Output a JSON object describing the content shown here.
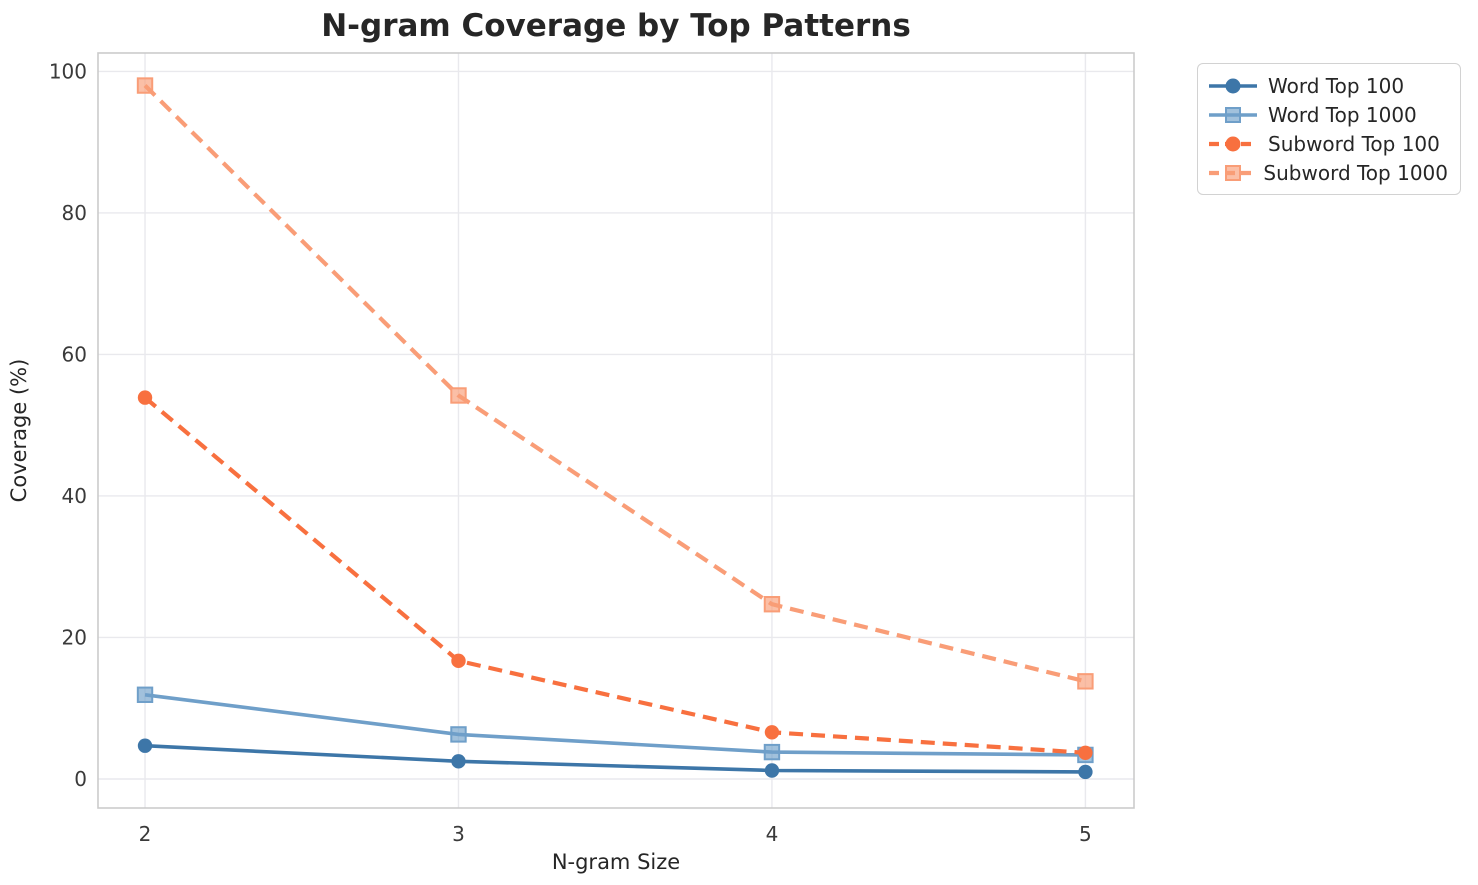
{
  "chart_data": {
    "type": "line",
    "title": "N-gram Coverage by Top Patterns",
    "xlabel": "N-gram Size",
    "ylabel": "Coverage (%)",
    "x": [
      2,
      3,
      4,
      5
    ],
    "xtick_labels": [
      "2",
      "3",
      "4",
      "5"
    ],
    "ytick_values": [
      0,
      20,
      40,
      60,
      80,
      100
    ],
    "xlim": [
      1.85,
      5.155
    ],
    "ylim": [
      -4.1,
      102.6
    ],
    "grid": true,
    "legend_position": "outside-top-right",
    "series": [
      {
        "name": "Word Top 100",
        "color": "#3d76a8",
        "marker": "circle",
        "line_style": "solid",
        "values": [
          4.7,
          2.5,
          1.2,
          1.0
        ]
      },
      {
        "name": "Word Top 1000",
        "color": "#6f9fc9",
        "marker": "square",
        "line_style": "solid",
        "values": [
          11.9,
          6.3,
          3.8,
          3.4
        ]
      },
      {
        "name": "Subword Top 100",
        "color": "#f8703f",
        "marker": "circle",
        "line_style": "dashed",
        "values": [
          53.9,
          16.7,
          6.6,
          3.7
        ]
      },
      {
        "name": "Subword Top 1000",
        "color": "#f99d77",
        "marker": "square",
        "line_style": "dashed",
        "values": [
          98.0,
          54.2,
          24.7,
          13.8
        ]
      }
    ],
    "colors": {
      "grid": "#e9e9ed",
      "spine": "#cbcbcb",
      "title_text": "#262626",
      "tick_text": "#3a3a3a"
    }
  }
}
